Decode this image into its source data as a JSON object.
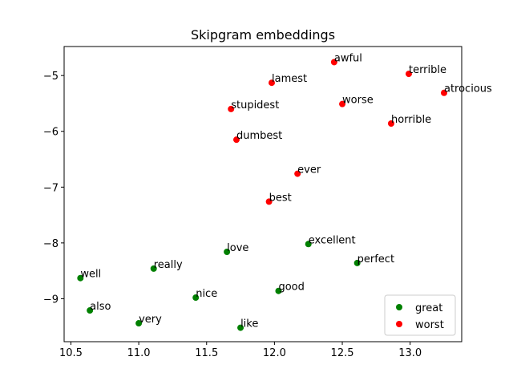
{
  "chart_data": {
    "type": "scatter",
    "title": "Skipgram embeddings",
    "xlabel": "",
    "ylabel": "",
    "xlim": [
      10.45,
      13.38
    ],
    "ylim": [
      -9.77,
      -4.48
    ],
    "xticks": [
      10.5,
      11.0,
      11.5,
      12.0,
      12.5,
      13.0
    ],
    "yticks": [
      -9,
      -8,
      -7,
      -6,
      -5
    ],
    "xtick_labels": [
      "10.5",
      "11.0",
      "11.5",
      "12.0",
      "12.5",
      "13.0"
    ],
    "ytick_labels": [
      "−9",
      "−8",
      "−7",
      "−6",
      "−5"
    ],
    "grid": false,
    "legend": {
      "placement": "lower-right",
      "entries": [
        "great",
        "worst"
      ]
    },
    "colors": {
      "great": "#008000",
      "worst": "#ff0000"
    },
    "series": [
      {
        "name": "great",
        "points": [
          {
            "label": "excellent",
            "x": 12.25,
            "y": -8.02
          },
          {
            "label": "perfect",
            "x": 12.61,
            "y": -8.36
          },
          {
            "label": "love",
            "x": 11.65,
            "y": -8.16
          },
          {
            "label": "really",
            "x": 11.11,
            "y": -8.46
          },
          {
            "label": "well",
            "x": 10.57,
            "y": -8.63
          },
          {
            "label": "good",
            "x": 12.03,
            "y": -8.86
          },
          {
            "label": "nice",
            "x": 11.42,
            "y": -8.98
          },
          {
            "label": "also",
            "x": 10.64,
            "y": -9.21
          },
          {
            "label": "very",
            "x": 11.0,
            "y": -9.44
          },
          {
            "label": "like",
            "x": 11.75,
            "y": -9.52
          }
        ]
      },
      {
        "name": "worst",
        "points": [
          {
            "label": "awful",
            "x": 12.44,
            "y": -4.76
          },
          {
            "label": "terrible",
            "x": 12.99,
            "y": -4.97
          },
          {
            "label": "lamest",
            "x": 11.98,
            "y": -5.13
          },
          {
            "label": "atrocious",
            "x": 13.25,
            "y": -5.31
          },
          {
            "label": "worse",
            "x": 12.5,
            "y": -5.51
          },
          {
            "label": "stupidest",
            "x": 11.68,
            "y": -5.6
          },
          {
            "label": "horrible",
            "x": 12.86,
            "y": -5.86
          },
          {
            "label": "dumbest",
            "x": 11.72,
            "y": -6.15
          },
          {
            "label": "ever",
            "x": 12.17,
            "y": -6.76
          },
          {
            "label": "best",
            "x": 11.96,
            "y": -7.26
          }
        ]
      }
    ]
  }
}
